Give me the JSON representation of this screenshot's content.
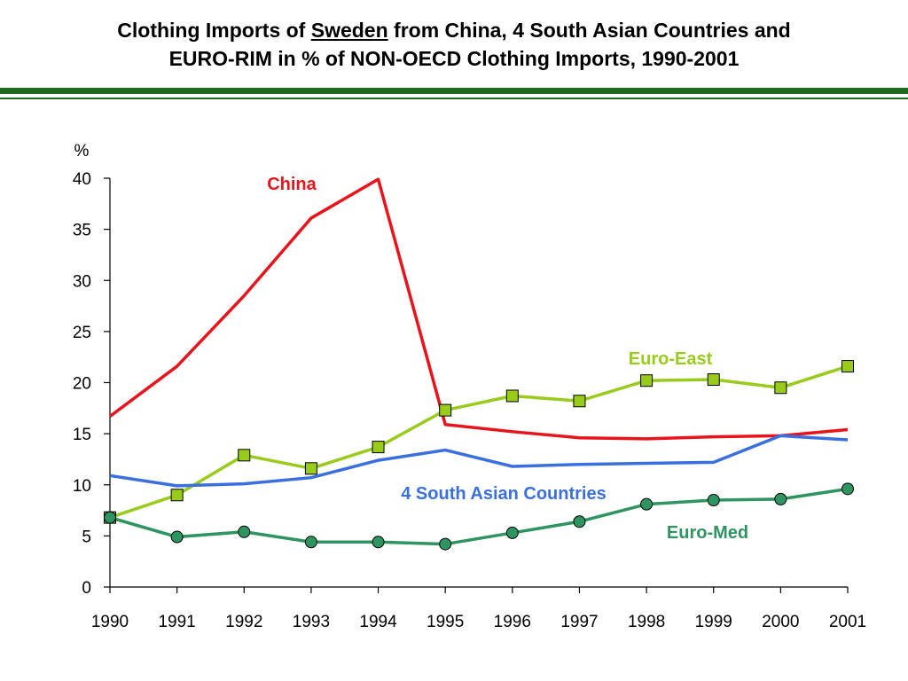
{
  "header": {
    "title_part1": "Clothing Imports of ",
    "title_country": "Sweden",
    "title_part2": " from China, 4 South Asian Countries and",
    "title_line2": "EURO-RIM in % of NON-OECD Clothing Imports, 1990-2001"
  },
  "chart_data": {
    "type": "line",
    "title": "Clothing Imports of Sweden from China, 4 South Asian Countries and EURO-RIM in % of NON-OECD Clothing Imports, 1990-2001",
    "ylabel": "%",
    "xlabel": "",
    "ylim": [
      0,
      40
    ],
    "yticks": [
      "0",
      "5",
      "10",
      "15",
      "20",
      "25",
      "30",
      "35",
      "40"
    ],
    "x": [
      "1990",
      "1991",
      "1992",
      "1993",
      "1994",
      "1995",
      "1996",
      "1997",
      "1998",
      "1999",
      "2000",
      "2001"
    ],
    "grid": false,
    "legend": "inline labels",
    "series": [
      {
        "name": "China",
        "color": "#e8141b",
        "marker": "none",
        "values": [
          16.7,
          21.6,
          28.5,
          36.1,
          39.9,
          15.9,
          15.2,
          14.6,
          14.5,
          14.7,
          14.8,
          15.4
        ]
      },
      {
        "name": "Euro-East",
        "color": "#99cc1a",
        "marker": "square",
        "values": [
          6.8,
          9.0,
          12.9,
          11.6,
          13.7,
          17.3,
          18.7,
          18.2,
          20.2,
          20.3,
          19.5,
          21.6
        ]
      },
      {
        "name": "4 South Asian Countries",
        "color": "#3a6fe0",
        "marker": "none",
        "values": [
          10.9,
          9.9,
          10.1,
          10.7,
          12.4,
          13.4,
          11.8,
          12.0,
          12.1,
          12.2,
          14.8,
          14.4
        ]
      },
      {
        "name": "Euro-Med",
        "color": "#2e9460",
        "marker": "circle",
        "values": [
          6.8,
          4.9,
          5.4,
          4.4,
          4.4,
          4.2,
          5.3,
          6.4,
          8.1,
          8.5,
          8.6,
          9.6
        ]
      }
    ]
  }
}
